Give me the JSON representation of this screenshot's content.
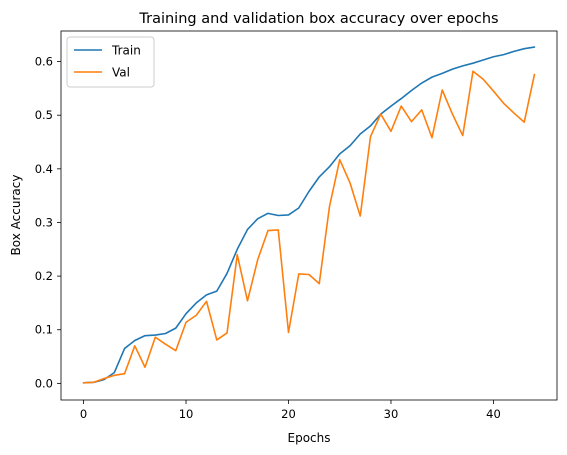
{
  "chart_data": {
    "type": "line",
    "title": "Training and validation box accuracy over epochs",
    "xlabel": "Epochs",
    "ylabel": "Box Accuracy",
    "xlim": [
      -2.2,
      46.2
    ],
    "ylim": [
      -0.031,
      0.657
    ],
    "xticks": [
      0,
      10,
      20,
      30,
      40
    ],
    "yticks": [
      0.0,
      0.1,
      0.2,
      0.3,
      0.4,
      0.5,
      0.6
    ],
    "ytick_labels": [
      "0.0",
      "0.1",
      "0.2",
      "0.3",
      "0.4",
      "0.5",
      "0.6"
    ],
    "grid": false,
    "legend_position": "top-left",
    "x": [
      0,
      1,
      2,
      3,
      4,
      5,
      6,
      7,
      8,
      9,
      10,
      11,
      12,
      13,
      14,
      15,
      16,
      17,
      18,
      19,
      20,
      21,
      22,
      23,
      24,
      25,
      26,
      27,
      28,
      29,
      30,
      31,
      32,
      33,
      34,
      35,
      36,
      37,
      38,
      39,
      40,
      41,
      42,
      43,
      44
    ],
    "series": [
      {
        "name": "Train",
        "color": "#1f77b4",
        "values": [
          0.001,
          0.002,
          0.007,
          0.02,
          0.065,
          0.08,
          0.089,
          0.09,
          0.093,
          0.103,
          0.13,
          0.15,
          0.165,
          0.172,
          0.205,
          0.25,
          0.287,
          0.307,
          0.317,
          0.313,
          0.314,
          0.327,
          0.358,
          0.385,
          0.404,
          0.428,
          0.443,
          0.465,
          0.48,
          0.502,
          0.517,
          0.531,
          0.546,
          0.56,
          0.571,
          0.578,
          0.586,
          0.592,
          0.597,
          0.603,
          0.609,
          0.613,
          0.619,
          0.624,
          0.627
        ]
      },
      {
        "name": "Val",
        "color": "#ff7f0e",
        "values": [
          0.001,
          0.002,
          0.009,
          0.015,
          0.018,
          0.07,
          0.03,
          0.086,
          0.073,
          0.061,
          0.114,
          0.127,
          0.153,
          0.081,
          0.094,
          0.24,
          0.154,
          0.231,
          0.285,
          0.286,
          0.095,
          0.204,
          0.203,
          0.186,
          0.33,
          0.417,
          0.374,
          0.312,
          0.46,
          0.502,
          0.47,
          0.517,
          0.488,
          0.51,
          0.458,
          0.547,
          0.502,
          0.462,
          0.582,
          0.567,
          0.545,
          0.522,
          0.504,
          0.487,
          0.576
        ]
      }
    ]
  }
}
